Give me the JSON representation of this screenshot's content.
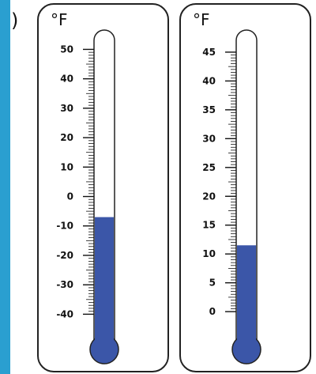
{
  "prefix_mark": ")",
  "colors": {
    "sidebar": "#2a9fd0",
    "mercury": "#3b56a8",
    "outline": "#222222"
  },
  "thermometers": [
    {
      "unit": "°F",
      "scale_min": -45,
      "scale_max": 52,
      "tick_labels": [
        50,
        40,
        30,
        20,
        10,
        0,
        -10,
        -20,
        -30,
        -40
      ],
      "minor_step": 1,
      "reading": -7
    },
    {
      "unit": "°F",
      "scale_min": -3,
      "scale_max": 46.5,
      "tick_labels": [
        45,
        40,
        35,
        30,
        25,
        20,
        15,
        10,
        5,
        0
      ],
      "minor_step": 0.5,
      "reading": 11.5
    }
  ]
}
